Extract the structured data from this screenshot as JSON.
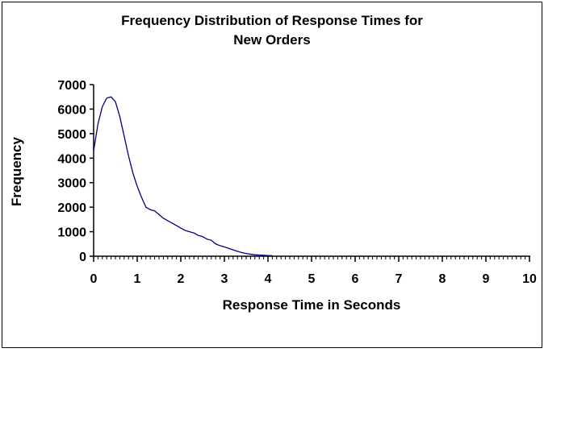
{
  "chart_data": {
    "type": "line",
    "title_line1": "Frequency Distribution of Response Times for",
    "title_line2": "New Orders",
    "xlabel": "Response Time in Seconds",
    "ylabel": "Frequency",
    "xlim": [
      0,
      10
    ],
    "ylim": [
      0,
      7000
    ],
    "x_major_ticks": [
      0,
      1,
      2,
      3,
      4,
      5,
      6,
      7,
      8,
      9,
      10
    ],
    "x_minor_tick_step": 0.1,
    "y_ticks": [
      0,
      1000,
      2000,
      3000,
      4000,
      5000,
      6000,
      7000
    ],
    "grid": false,
    "legend_position": "none",
    "line_color": "#000080",
    "axis_color": "#000000",
    "background_color": "#ffffff",
    "series": [
      {
        "name": "Frequency",
        "x": [
          0.0,
          0.1,
          0.2,
          0.3,
          0.4,
          0.5,
          0.6,
          0.7,
          0.8,
          0.9,
          1.0,
          1.1,
          1.2,
          1.3,
          1.4,
          1.5,
          1.6,
          1.7,
          1.8,
          1.9,
          2.0,
          2.1,
          2.2,
          2.3,
          2.4,
          2.5,
          2.6,
          2.7,
          2.8,
          2.9,
          3.0,
          3.1,
          3.2,
          3.3,
          3.4,
          3.5,
          3.6,
          3.7,
          3.8,
          3.9,
          4.0,
          4.1
        ],
        "y": [
          4300,
          5400,
          6100,
          6450,
          6500,
          6300,
          5700,
          4900,
          4100,
          3400,
          2850,
          2400,
          2000,
          1900,
          1850,
          1700,
          1550,
          1450,
          1350,
          1250,
          1150,
          1050,
          1000,
          950,
          850,
          800,
          700,
          650,
          500,
          430,
          380,
          320,
          260,
          200,
          150,
          110,
          80,
          60,
          50,
          40,
          30,
          25
        ]
      }
    ]
  }
}
